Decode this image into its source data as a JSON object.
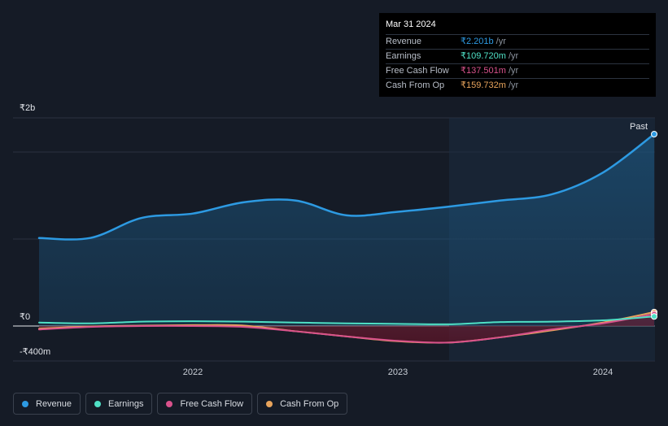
{
  "tooltip": {
    "date": "Mar 31 2024",
    "rows": [
      {
        "label": "Revenue",
        "value": "₹2.201b",
        "unit": "/yr",
        "color": "#2d9ae2"
      },
      {
        "label": "Earnings",
        "value": "₹109.720m",
        "unit": "/yr",
        "color": "#4fe0c5"
      },
      {
        "label": "Free Cash Flow",
        "value": "₹137.501m",
        "unit": "/yr",
        "color": "#d9528c"
      },
      {
        "label": "Cash From Op",
        "value": "₹159.732m",
        "unit": "/yr",
        "color": "#e8a45c"
      }
    ]
  },
  "past_label": "Past",
  "legend": [
    {
      "label": "Revenue",
      "color": "#2d9ae2"
    },
    {
      "label": "Earnings",
      "color": "#4fe0c5"
    },
    {
      "label": "Free Cash Flow",
      "color": "#d9528c"
    },
    {
      "label": "Cash From Op",
      "color": "#e8a45c"
    }
  ],
  "chart_data": {
    "type": "area",
    "y_unit": "₹ millions",
    "ylim": [
      -400,
      2000
    ],
    "y_tick_labels": [
      "₹2b",
      "₹0",
      "-₹400m"
    ],
    "x_tick_labels": [
      "2022",
      "2023",
      "2024"
    ],
    "x_range": [
      2021.25,
      2024.25
    ],
    "series": [
      {
        "name": "Revenue",
        "color": "#2d9ae2",
        "x": [
          2021.25,
          2021.5,
          2021.75,
          2022.0,
          2022.25,
          2022.5,
          2022.75,
          2023.0,
          2023.25,
          2023.5,
          2023.75,
          2024.0,
          2024.25
        ],
        "values": [
          1010,
          1010,
          1240,
          1290,
          1420,
          1440,
          1270,
          1310,
          1370,
          1440,
          1510,
          1760,
          2201
        ]
      },
      {
        "name": "Earnings",
        "color": "#4fe0c5",
        "x": [
          2021.25,
          2021.5,
          2021.75,
          2022.0,
          2022.25,
          2022.5,
          2022.75,
          2023.0,
          2023.25,
          2023.5,
          2023.75,
          2024.0,
          2024.25
        ],
        "values": [
          40,
          30,
          50,
          55,
          50,
          40,
          30,
          25,
          20,
          45,
          50,
          65,
          109.72
        ]
      },
      {
        "name": "Free Cash Flow",
        "color": "#d9528c",
        "x": [
          2021.25,
          2021.5,
          2021.75,
          2022.0,
          2022.25,
          2022.5,
          2022.75,
          2023.0,
          2023.25,
          2023.5,
          2023.75,
          2024.0,
          2024.25
        ],
        "values": [
          -40,
          -10,
          0,
          0,
          -10,
          -60,
          -120,
          -170,
          -190,
          -130,
          -40,
          30,
          137.501
        ]
      },
      {
        "name": "Cash From Op",
        "color": "#e8a45c",
        "x": [
          2021.25,
          2021.5,
          2021.75,
          2022.0,
          2022.25,
          2022.5,
          2022.75,
          2023.0,
          2023.25,
          2023.5,
          2023.75,
          2024.0,
          2024.25
        ],
        "values": [
          -30,
          -5,
          5,
          10,
          5,
          -60,
          -120,
          -175,
          -190,
          -130,
          -50,
          40,
          159.732
        ]
      }
    ]
  }
}
